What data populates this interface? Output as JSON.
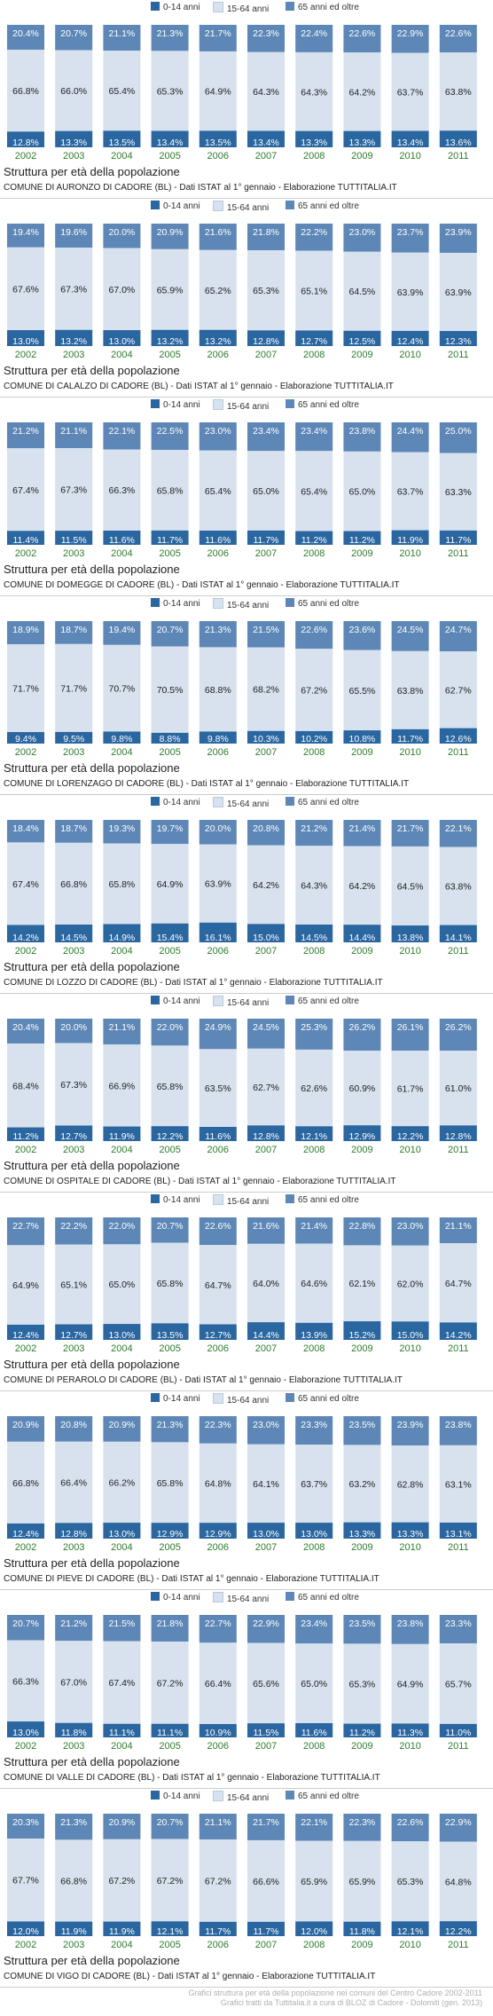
{
  "legend": [
    "0-14 anni",
    "15-64 anni",
    "65 anni ed oltre"
  ],
  "colors": {
    "young": "#2a66a0",
    "adult": "#d7e2ee",
    "old": "#5d87b6",
    "year": "#2e7d2e"
  },
  "panel_title": "Struttura per età della popolazione",
  "footer": {
    "line1": "Grafici struttura per età della popolazione nei comuni del Centro Cadore 2002-2011",
    "line2": "Grafici tratti da Tuttitalia.it a cura di BLOZ di Cadore - Dolomiti (gen. 2013)"
  },
  "chart_data": [
    {
      "type": "bar",
      "stacked": true,
      "source": "COMUNE DI AURONZO DI CADORE (BL) - Dati ISTAT al 1° gennaio - Elaborazione TUTTITALIA.IT",
      "categories": [
        "2002",
        "2003",
        "2004",
        "2005",
        "2006",
        "2007",
        "2008",
        "2009",
        "2010",
        "2011"
      ],
      "series": [
        {
          "name": "0-14 anni",
          "values": [
            12.8,
            13.3,
            13.5,
            13.4,
            13.5,
            13.4,
            13.3,
            13.3,
            13.4,
            13.6
          ]
        },
        {
          "name": "15-64 anni",
          "values": [
            66.8,
            66.0,
            65.4,
            65.3,
            64.9,
            64.3,
            64.3,
            64.2,
            63.7,
            63.8
          ]
        },
        {
          "name": "65 anni ed oltre",
          "values": [
            20.4,
            20.7,
            21.1,
            21.3,
            21.7,
            22.3,
            22.4,
            22.6,
            22.9,
            22.6
          ]
        }
      ]
    },
    {
      "type": "bar",
      "stacked": true,
      "source": "COMUNE DI CALALZO DI CADORE (BL) - Dati ISTAT al 1° gennaio - Elaborazione TUTTITALIA.IT",
      "categories": [
        "2002",
        "2003",
        "2004",
        "2005",
        "2006",
        "2007",
        "2008",
        "2009",
        "2010",
        "2011"
      ],
      "series": [
        {
          "name": "0-14 anni",
          "values": [
            13.0,
            13.2,
            13.0,
            13.2,
            13.2,
            12.8,
            12.7,
            12.5,
            12.4,
            12.3
          ]
        },
        {
          "name": "15-64 anni",
          "values": [
            67.6,
            67.3,
            67.0,
            65.9,
            65.2,
            65.3,
            65.1,
            64.5,
            63.9,
            63.9
          ]
        },
        {
          "name": "65 anni ed oltre",
          "values": [
            19.4,
            19.6,
            20.0,
            20.9,
            21.6,
            21.8,
            22.2,
            23.0,
            23.7,
            23.9
          ]
        }
      ]
    },
    {
      "type": "bar",
      "stacked": true,
      "source": "COMUNE DI DOMEGGE DI CADORE (BL) - Dati ISTAT al 1° gennaio - Elaborazione TUTTITALIA.IT",
      "categories": [
        "2002",
        "2003",
        "2004",
        "2005",
        "2006",
        "2007",
        "2008",
        "2009",
        "2010",
        "2011"
      ],
      "series": [
        {
          "name": "0-14 anni",
          "values": [
            11.4,
            11.5,
            11.6,
            11.7,
            11.6,
            11.7,
            11.2,
            11.2,
            11.9,
            11.7
          ]
        },
        {
          "name": "15-64 anni",
          "values": [
            67.4,
            67.3,
            66.3,
            65.8,
            65.4,
            65.0,
            65.4,
            65.0,
            63.7,
            63.3
          ]
        },
        {
          "name": "65 anni ed oltre",
          "values": [
            21.2,
            21.1,
            22.1,
            22.5,
            23.0,
            23.4,
            23.4,
            23.8,
            24.4,
            25.0
          ]
        }
      ]
    },
    {
      "type": "bar",
      "stacked": true,
      "source": "COMUNE DI LORENZAGO DI CADORE (BL) - Dati ISTAT al 1° gennaio - Elaborazione TUTTITALIA.IT",
      "categories": [
        "2002",
        "2003",
        "2004",
        "2005",
        "2006",
        "2007",
        "2008",
        "2009",
        "2010",
        "2011"
      ],
      "series": [
        {
          "name": "0-14 anni",
          "values": [
            9.4,
            9.5,
            9.8,
            8.8,
            9.8,
            10.3,
            10.2,
            10.8,
            11.7,
            12.6
          ]
        },
        {
          "name": "15-64 anni",
          "values": [
            71.7,
            71.7,
            70.7,
            70.5,
            68.8,
            68.2,
            67.2,
            65.5,
            63.8,
            62.7
          ]
        },
        {
          "name": "65 anni ed oltre",
          "values": [
            18.9,
            18.7,
            19.4,
            20.7,
            21.3,
            21.5,
            22.6,
            23.6,
            24.5,
            24.7
          ]
        }
      ]
    },
    {
      "type": "bar",
      "stacked": true,
      "source": "COMUNE DI LOZZO DI CADORE (BL) - Dati ISTAT al 1° gennaio - Elaborazione TUTTITALIA.IT",
      "categories": [
        "2002",
        "2003",
        "2004",
        "2005",
        "2006",
        "2007",
        "2008",
        "2009",
        "2010",
        "2011"
      ],
      "series": [
        {
          "name": "0-14 anni",
          "values": [
            14.2,
            14.5,
            14.9,
            15.4,
            16.1,
            15.0,
            14.5,
            14.4,
            13.8,
            14.1
          ]
        },
        {
          "name": "15-64 anni",
          "values": [
            67.4,
            66.8,
            65.8,
            64.9,
            63.9,
            64.2,
            64.3,
            64.2,
            64.5,
            63.8
          ]
        },
        {
          "name": "65 anni ed oltre",
          "values": [
            18.4,
            18.7,
            19.3,
            19.7,
            20.0,
            20.8,
            21.2,
            21.4,
            21.7,
            22.1
          ]
        }
      ]
    },
    {
      "type": "bar",
      "stacked": true,
      "source": "COMUNE DI OSPITALE DI CADORE (BL) - Dati ISTAT al 1° gennaio - Elaborazione TUTTITALIA.IT",
      "categories": [
        "2002",
        "2003",
        "2004",
        "2005",
        "2006",
        "2007",
        "2008",
        "2009",
        "2010",
        "2011"
      ],
      "series": [
        {
          "name": "0-14 anni",
          "values": [
            11.2,
            12.7,
            11.9,
            12.2,
            11.6,
            12.8,
            12.1,
            12.9,
            12.2,
            12.8
          ]
        },
        {
          "name": "15-64 anni",
          "values": [
            68.4,
            67.3,
            66.9,
            65.8,
            63.5,
            62.7,
            62.6,
            60.9,
            61.7,
            61.0
          ]
        },
        {
          "name": "65 anni ed oltre",
          "values": [
            20.4,
            20.0,
            21.1,
            22.0,
            24.9,
            24.5,
            25.3,
            26.2,
            26.1,
            26.2
          ]
        }
      ]
    },
    {
      "type": "bar",
      "stacked": true,
      "source": "COMUNE DI PERAROLO DI CADORE (BL) - Dati ISTAT al 1° gennaio - Elaborazione TUTTITALIA.IT",
      "categories": [
        "2002",
        "2003",
        "2004",
        "2005",
        "2006",
        "2007",
        "2008",
        "2009",
        "2010",
        "2011"
      ],
      "series": [
        {
          "name": "0-14 anni",
          "values": [
            12.4,
            12.7,
            13.0,
            13.5,
            12.7,
            14.4,
            13.9,
            15.2,
            15.0,
            14.2
          ]
        },
        {
          "name": "15-64 anni",
          "values": [
            64.9,
            65.1,
            65.0,
            65.8,
            64.7,
            64.0,
            64.6,
            62.1,
            62.0,
            64.7
          ]
        },
        {
          "name": "65 anni ed oltre",
          "values": [
            22.7,
            22.2,
            22.0,
            20.7,
            22.6,
            21.6,
            21.4,
            22.8,
            23.0,
            21.1
          ]
        }
      ]
    },
    {
      "type": "bar",
      "stacked": true,
      "source": "COMUNE DI PIEVE DI CADORE (BL) - Dati ISTAT al 1° gennaio - Elaborazione TUTTITALIA.IT",
      "categories": [
        "2002",
        "2003",
        "2004",
        "2005",
        "2006",
        "2007",
        "2008",
        "2009",
        "2010",
        "2011"
      ],
      "series": [
        {
          "name": "0-14 anni",
          "values": [
            12.4,
            12.8,
            13.0,
            12.9,
            12.9,
            13.0,
            13.0,
            13.3,
            13.3,
            13.1
          ]
        },
        {
          "name": "15-64 anni",
          "values": [
            66.8,
            66.4,
            66.2,
            65.8,
            64.8,
            64.1,
            63.7,
            63.2,
            62.8,
            63.1
          ]
        },
        {
          "name": "65 anni ed oltre",
          "values": [
            20.9,
            20.8,
            20.9,
            21.3,
            22.3,
            23.0,
            23.3,
            23.5,
            23.9,
            23.8
          ]
        }
      ]
    },
    {
      "type": "bar",
      "stacked": true,
      "source": "COMUNE DI VALLE DI CADORE (BL) - Dati ISTAT al 1° gennaio - Elaborazione TUTTITALIA.IT",
      "categories": [
        "2002",
        "2003",
        "2004",
        "2005",
        "2006",
        "2007",
        "2008",
        "2009",
        "2010",
        "2011"
      ],
      "series": [
        {
          "name": "0-14 anni",
          "values": [
            13.0,
            11.8,
            11.1,
            11.1,
            10.9,
            11.5,
            11.6,
            11.2,
            11.3,
            11.0
          ]
        },
        {
          "name": "15-64 anni",
          "values": [
            66.3,
            67.0,
            67.4,
            67.2,
            66.4,
            65.6,
            65.0,
            65.3,
            64.9,
            65.7
          ]
        },
        {
          "name": "65 anni ed oltre",
          "values": [
            20.7,
            21.2,
            21.5,
            21.8,
            22.7,
            22.9,
            23.4,
            23.5,
            23.8,
            23.3
          ]
        }
      ]
    },
    {
      "type": "bar",
      "stacked": true,
      "source": "COMUNE DI VIGO DI CADORE (BL) - Dati ISTAT al 1° gennaio - Elaborazione TUTTITALIA.IT",
      "categories": [
        "2002",
        "2003",
        "2004",
        "2005",
        "2006",
        "2007",
        "2008",
        "2009",
        "2010",
        "2011"
      ],
      "series": [
        {
          "name": "0-14 anni",
          "values": [
            12.0,
            11.9,
            11.9,
            12.1,
            11.7,
            11.7,
            12.0,
            11.8,
            12.1,
            12.2
          ]
        },
        {
          "name": "15-64 anni",
          "values": [
            67.7,
            66.8,
            67.2,
            67.2,
            67.2,
            66.6,
            65.9,
            65.9,
            65.3,
            64.8
          ]
        },
        {
          "name": "65 anni ed oltre",
          "values": [
            20.3,
            21.3,
            20.9,
            20.7,
            21.1,
            21.7,
            22.1,
            22.3,
            22.6,
            22.9
          ]
        }
      ]
    }
  ]
}
